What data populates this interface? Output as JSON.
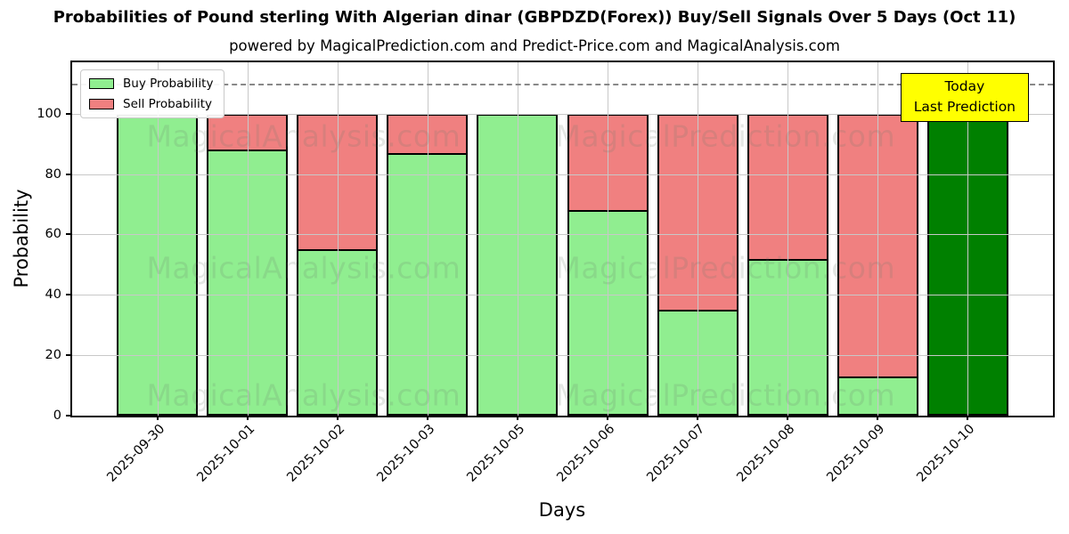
{
  "chart_data": {
    "type": "bar",
    "stacked": true,
    "title": "Probabilities of Pound sterling With Algerian dinar (GBPDZD(Forex)) Buy/Sell Signals Over 5 Days (Oct 11)",
    "subtitle": "powered by MagicalPrediction.com and Predict-Price.com and MagicalAnalysis.com",
    "xlabel": "Days",
    "ylabel": "Probability",
    "categories": [
      "2025-09-30",
      "2025-10-01",
      "2025-10-02",
      "2025-10-03",
      "2025-10-05",
      "2025-10-06",
      "2025-10-07",
      "2025-10-08",
      "2025-10-09",
      "2025-10-10"
    ],
    "series": [
      {
        "name": "Buy Probability",
        "color": "#90EE90",
        "values": [
          100,
          88,
          55,
          87,
          100,
          68,
          35,
          52,
          13,
          100
        ]
      },
      {
        "name": "Sell Probability",
        "color": "#F08080",
        "values": [
          0,
          12,
          45,
          13,
          0,
          32,
          65,
          48,
          87,
          0
        ]
      }
    ],
    "today_bar": {
      "category": "2025-10-10",
      "index": 9,
      "color": "#008000"
    },
    "yticks": [
      0,
      20,
      40,
      60,
      80,
      100
    ],
    "ylim": [
      0,
      117
    ],
    "dashed_line_y": 110,
    "grid": true,
    "legend_position": "upper left"
  },
  "annotation_box": {
    "line1": "Today",
    "line2": "Last Prediction",
    "bg": "#FFFF00"
  },
  "watermarks": {
    "left": "MagicalAnalysis.com",
    "right": "MagicalPrediction.com"
  },
  "colors": {
    "buy": "#90EE90",
    "sell": "#F08080",
    "today": "#008000",
    "bar_edge": "#000000",
    "grid": "#c8c8c8",
    "dashed_line": "#888888",
    "annotation_bg": "#FFFF00",
    "watermark": "rgba(105,122,105,0.18)",
    "plot_bg": "#ffffff"
  }
}
